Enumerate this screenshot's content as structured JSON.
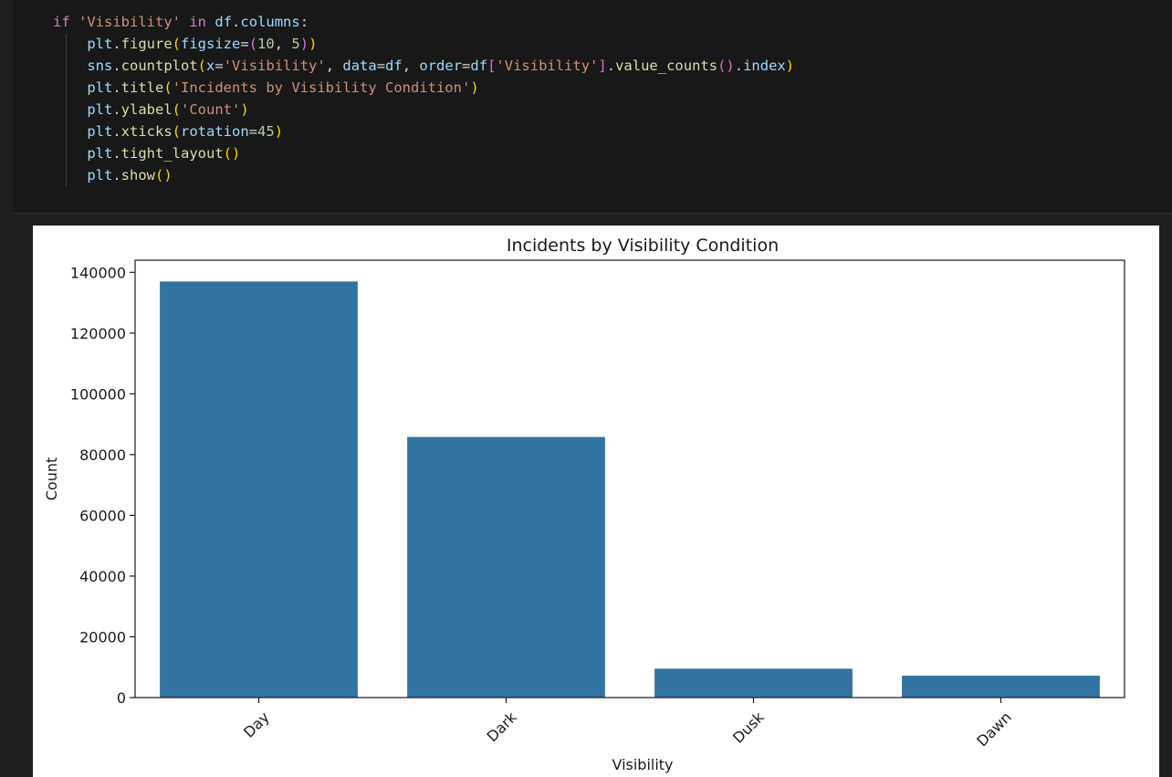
{
  "code": {
    "lines": [
      [
        {
          "t": "if",
          "c": "kw"
        },
        {
          "t": " ",
          "c": "op"
        },
        {
          "t": "'Visibility'",
          "c": "str"
        },
        {
          "t": " ",
          "c": "op"
        },
        {
          "t": "in",
          "c": "kw"
        },
        {
          "t": " ",
          "c": "op"
        },
        {
          "t": "df",
          "c": "var"
        },
        {
          "t": ".",
          "c": "op"
        },
        {
          "t": "columns",
          "c": "var"
        },
        {
          "t": ":",
          "c": "op"
        }
      ],
      [
        {
          "t": "    ",
          "c": "op"
        },
        {
          "t": "plt",
          "c": "var"
        },
        {
          "t": ".",
          "c": "op"
        },
        {
          "t": "figure",
          "c": "fn"
        },
        {
          "t": "(",
          "c": "p1"
        },
        {
          "t": "figsize",
          "c": "var"
        },
        {
          "t": "=",
          "c": "op"
        },
        {
          "t": "(",
          "c": "p2"
        },
        {
          "t": "10",
          "c": "num"
        },
        {
          "t": ", ",
          "c": "op"
        },
        {
          "t": "5",
          "c": "num"
        },
        {
          "t": ")",
          "c": "p2"
        },
        {
          "t": ")",
          "c": "p1"
        }
      ],
      [
        {
          "t": "    ",
          "c": "op"
        },
        {
          "t": "sns",
          "c": "var"
        },
        {
          "t": ".",
          "c": "op"
        },
        {
          "t": "countplot",
          "c": "fn"
        },
        {
          "t": "(",
          "c": "p1"
        },
        {
          "t": "x",
          "c": "var"
        },
        {
          "t": "=",
          "c": "op"
        },
        {
          "t": "'Visibility'",
          "c": "str"
        },
        {
          "t": ", ",
          "c": "op"
        },
        {
          "t": "data",
          "c": "var"
        },
        {
          "t": "=",
          "c": "op"
        },
        {
          "t": "df",
          "c": "var"
        },
        {
          "t": ", ",
          "c": "op"
        },
        {
          "t": "order",
          "c": "var"
        },
        {
          "t": "=",
          "c": "op"
        },
        {
          "t": "df",
          "c": "var"
        },
        {
          "t": "[",
          "c": "p2"
        },
        {
          "t": "'Visibility'",
          "c": "str"
        },
        {
          "t": "]",
          "c": "p2"
        },
        {
          "t": ".",
          "c": "op"
        },
        {
          "t": "value_counts",
          "c": "fn"
        },
        {
          "t": "(",
          "c": "p2"
        },
        {
          "t": ")",
          "c": "p2"
        },
        {
          "t": ".",
          "c": "op"
        },
        {
          "t": "index",
          "c": "var"
        },
        {
          "t": ")",
          "c": "p1"
        }
      ],
      [
        {
          "t": "    ",
          "c": "op"
        },
        {
          "t": "plt",
          "c": "var"
        },
        {
          "t": ".",
          "c": "op"
        },
        {
          "t": "title",
          "c": "fn"
        },
        {
          "t": "(",
          "c": "p1"
        },
        {
          "t": "'Incidents by Visibility Condition'",
          "c": "str"
        },
        {
          "t": ")",
          "c": "p1"
        }
      ],
      [
        {
          "t": "    ",
          "c": "op"
        },
        {
          "t": "plt",
          "c": "var"
        },
        {
          "t": ".",
          "c": "op"
        },
        {
          "t": "ylabel",
          "c": "fn"
        },
        {
          "t": "(",
          "c": "p1"
        },
        {
          "t": "'Count'",
          "c": "str"
        },
        {
          "t": ")",
          "c": "p1"
        }
      ],
      [
        {
          "t": "    ",
          "c": "op"
        },
        {
          "t": "plt",
          "c": "var"
        },
        {
          "t": ".",
          "c": "op"
        },
        {
          "t": "xticks",
          "c": "fn"
        },
        {
          "t": "(",
          "c": "p1"
        },
        {
          "t": "rotation",
          "c": "var"
        },
        {
          "t": "=",
          "c": "op"
        },
        {
          "t": "45",
          "c": "num"
        },
        {
          "t": ")",
          "c": "p1"
        }
      ],
      [
        {
          "t": "    ",
          "c": "op"
        },
        {
          "t": "plt",
          "c": "var"
        },
        {
          "t": ".",
          "c": "op"
        },
        {
          "t": "tight_layout",
          "c": "fn"
        },
        {
          "t": "(",
          "c": "p1"
        },
        {
          "t": ")",
          "c": "p1"
        }
      ],
      [
        {
          "t": "    ",
          "c": "op"
        },
        {
          "t": "plt",
          "c": "var"
        },
        {
          "t": ".",
          "c": "op"
        },
        {
          "t": "show",
          "c": "fn"
        },
        {
          "t": "(",
          "c": "p1"
        },
        {
          "t": ")",
          "c": "p1"
        }
      ]
    ]
  },
  "chart_data": {
    "type": "bar",
    "title": "Incidents by Visibility Condition",
    "xlabel": "Visibility",
    "ylabel": "Count",
    "categories": [
      "Day",
      "Dark",
      "Dusk",
      "Dawn"
    ],
    "values": [
      137000,
      85800,
      9500,
      7200
    ],
    "ylim": [
      0,
      144000
    ],
    "yticks": [
      0,
      20000,
      40000,
      60000,
      80000,
      100000,
      120000,
      140000
    ],
    "xtick_rotation": 45,
    "bar_color": "#3274a1",
    "grid": false
  },
  "colors": {
    "editor_bg": "#181818",
    "page_bg": "#1f1f1f",
    "output_bg": "#ffffff"
  }
}
